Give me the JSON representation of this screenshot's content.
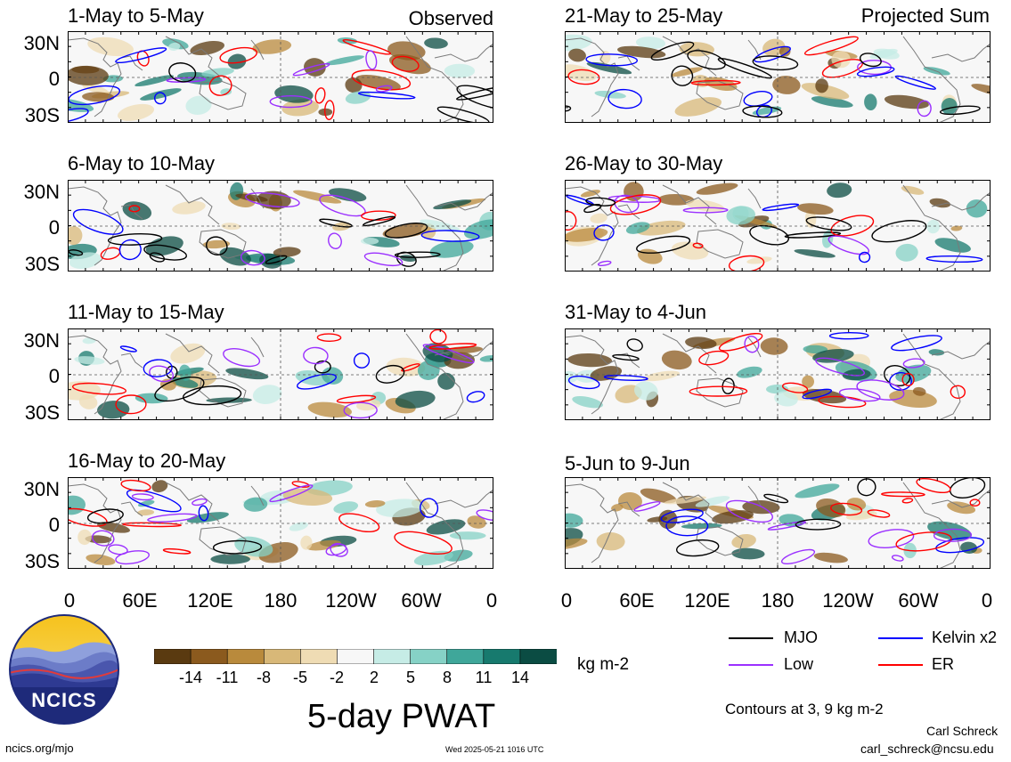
{
  "panels": [
    {
      "title": "1-May to 5-May",
      "tag": "Observed"
    },
    {
      "title": "6-May to 10-May",
      "tag": ""
    },
    {
      "title": "11-May to 15-May",
      "tag": ""
    },
    {
      "title": "16-May to 20-May",
      "tag": ""
    },
    {
      "title": "21-May to 25-May",
      "tag": "Projected Sum"
    },
    {
      "title": "26-May to 30-May",
      "tag": ""
    },
    {
      "title": "31-May to 4-Jun",
      "tag": ""
    },
    {
      "title": "5-Jun to 9-Jun",
      "tag": ""
    }
  ],
  "lat_labels": [
    "30N",
    "0",
    "30S"
  ],
  "lon_labels": [
    "0",
    "60E",
    "120E",
    "180",
    "120W",
    "60W",
    "0"
  ],
  "colorbar": {
    "ticks": [
      "-14",
      "-11",
      "-8",
      "-5",
      "-2",
      "2",
      "5",
      "8",
      "11",
      "14"
    ],
    "unit": "kg m-2",
    "colors": [
      "#5a3a10",
      "#8b5a1e",
      "#b98a3c",
      "#d8b878",
      "#efdcb4",
      "#f7f7f7",
      "#c6ece6",
      "#86d2c6",
      "#3fa79a",
      "#177a6e",
      "#0b4c43"
    ]
  },
  "legend": {
    "items": [
      {
        "label": "MJO",
        "color": "#000000"
      },
      {
        "label": "Kelvin x2",
        "color": "#0000ff"
      },
      {
        "label": "Low",
        "color": "#9b30ff"
      },
      {
        "label": "ER",
        "color": "#ff0000"
      }
    ],
    "contour_note": "Contours at 3, 9 kg m-2"
  },
  "main_title": "5-day PWAT",
  "logo_text": "NCICS",
  "footer": {
    "url": "ncics.org/mjo",
    "timestamp": "Wed 2025-05-21 1016 UTC",
    "author": "Carl Schreck",
    "email": "carl_schreck@ncsu.edu"
  }
}
